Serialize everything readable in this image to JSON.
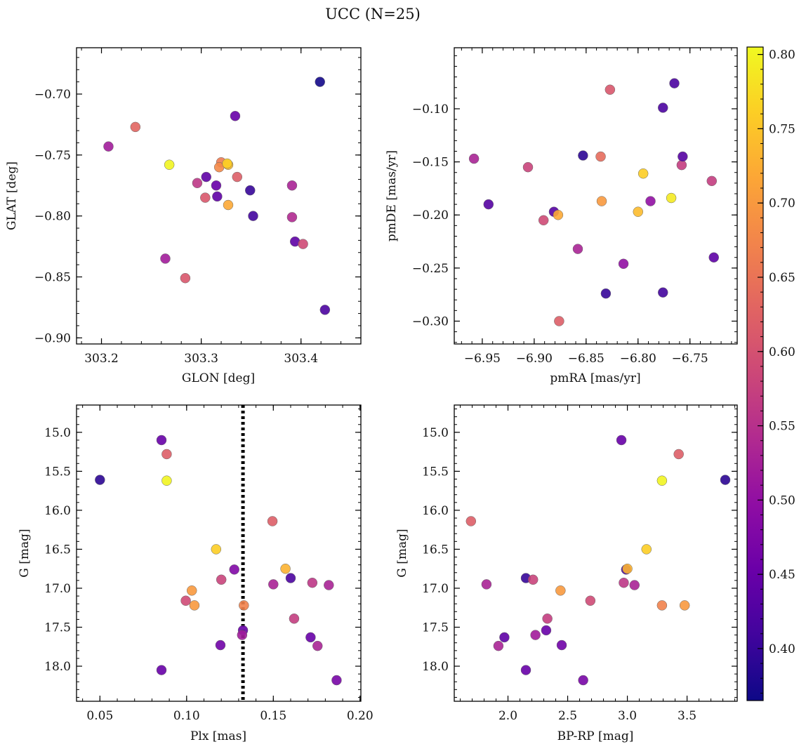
{
  "figure": {
    "title": "UCC (N=25)"
  },
  "colorbar": {
    "min": 0.365,
    "max": 0.805,
    "ticks": [
      0.4,
      0.45,
      0.5,
      0.55,
      0.6,
      0.65,
      0.7,
      0.75,
      0.8
    ],
    "tick_labels": [
      "0.40",
      "0.45",
      "0.50",
      "0.55",
      "0.60",
      "0.65",
      "0.70",
      "0.75",
      "0.80"
    ],
    "colormap": "plasma"
  },
  "chart_data": [
    {
      "type": "scatter",
      "xlabel": "GLON [deg]",
      "ylabel": "GLAT [deg]",
      "xlim": [
        303.175,
        303.46
      ],
      "ylim": [
        -0.905,
        -0.662
      ],
      "y_inverted": false,
      "xticks": [
        303.2,
        303.3,
        303.4
      ],
      "xtick_labels": [
        "303.2",
        "303.3",
        "303.4"
      ],
      "yticks": [
        -0.9,
        -0.85,
        -0.8,
        -0.75,
        -0.7
      ],
      "ytick_labels": [
        "−0.90",
        "−0.85",
        "−0.80",
        "−0.75",
        "−0.70"
      ],
      "points": [
        {
          "x": 303.419,
          "y": -0.69,
          "c": 0.37
        },
        {
          "x": 303.207,
          "y": -0.743,
          "c": 0.52
        },
        {
          "x": 303.234,
          "y": -0.727,
          "c": 0.63
        },
        {
          "x": 303.268,
          "y": -0.758,
          "c": 0.8
        },
        {
          "x": 303.334,
          "y": -0.718,
          "c": 0.45
        },
        {
          "x": 303.32,
          "y": -0.756,
          "c": 0.66
        },
        {
          "x": 303.318,
          "y": -0.76,
          "c": 0.68
        },
        {
          "x": 303.327,
          "y": -0.758,
          "c": 0.74
        },
        {
          "x": 303.326,
          "y": -0.757,
          "c": 0.76
        },
        {
          "x": 303.336,
          "y": -0.768,
          "c": 0.62
        },
        {
          "x": 303.305,
          "y": -0.768,
          "c": 0.44
        },
        {
          "x": 303.296,
          "y": -0.773,
          "c": 0.56
        },
        {
          "x": 303.315,
          "y": -0.775,
          "c": 0.45
        },
        {
          "x": 303.316,
          "y": -0.784,
          "c": 0.44
        },
        {
          "x": 303.304,
          "y": -0.785,
          "c": 0.61
        },
        {
          "x": 303.327,
          "y": -0.791,
          "c": 0.72
        },
        {
          "x": 303.349,
          "y": -0.779,
          "c": 0.4
        },
        {
          "x": 303.352,
          "y": -0.8,
          "c": 0.41
        },
        {
          "x": 303.391,
          "y": -0.775,
          "c": 0.53
        },
        {
          "x": 303.391,
          "y": -0.801,
          "c": 0.54
        },
        {
          "x": 303.394,
          "y": -0.821,
          "c": 0.44
        },
        {
          "x": 303.402,
          "y": -0.823,
          "c": 0.59
        },
        {
          "x": 303.264,
          "y": -0.835,
          "c": 0.52
        },
        {
          "x": 303.284,
          "y": -0.851,
          "c": 0.61
        },
        {
          "x": 303.424,
          "y": -0.877,
          "c": 0.42
        }
      ]
    },
    {
      "type": "scatter",
      "xlabel": "pmRA [mas/yr]",
      "ylabel": "pmDE [mas/yr]",
      "xlim": [
        -6.977,
        -6.7045
      ],
      "ylim": [
        -0.3215,
        -0.0425
      ],
      "y_inverted": false,
      "xticks": [
        -6.95,
        -6.9,
        -6.85,
        -6.8,
        -6.75
      ],
      "xtick_labels": [
        "−6.95",
        "−6.90",
        "−6.85",
        "−6.80",
        "−6.75"
      ],
      "yticks": [
        -0.3,
        -0.25,
        -0.2,
        -0.15,
        -0.1
      ],
      "ytick_labels": [
        "−0.30",
        "−0.25",
        "−0.20",
        "−0.15",
        "−0.10"
      ],
      "points": [
        {
          "x": -6.765,
          "y": -0.076,
          "c": 0.42
        },
        {
          "x": -6.827,
          "y": -0.082,
          "c": 0.61
        },
        {
          "x": -6.776,
          "y": -0.099,
          "c": 0.42
        },
        {
          "x": -6.958,
          "y": -0.147,
          "c": 0.53
        },
        {
          "x": -6.853,
          "y": -0.144,
          "c": 0.39
        },
        {
          "x": -6.836,
          "y": -0.145,
          "c": 0.64
        },
        {
          "x": -6.906,
          "y": -0.155,
          "c": 0.58
        },
        {
          "x": -6.795,
          "y": -0.161,
          "c": 0.76
        },
        {
          "x": -6.758,
          "y": -0.153,
          "c": 0.57
        },
        {
          "x": -6.757,
          "y": -0.145,
          "c": 0.43
        },
        {
          "x": -6.729,
          "y": -0.168,
          "c": 0.57
        },
        {
          "x": -6.944,
          "y": -0.19,
          "c": 0.43
        },
        {
          "x": -6.835,
          "y": -0.187,
          "c": 0.7
        },
        {
          "x": -6.788,
          "y": -0.187,
          "c": 0.5
        },
        {
          "x": -6.768,
          "y": -0.184,
          "c": 0.79
        },
        {
          "x": -6.881,
          "y": -0.197,
          "c": 0.43
        },
        {
          "x": -6.877,
          "y": -0.2,
          "c": 0.72
        },
        {
          "x": -6.8,
          "y": -0.197,
          "c": 0.74
        },
        {
          "x": -6.891,
          "y": -0.205,
          "c": 0.59
        },
        {
          "x": -6.858,
          "y": -0.232,
          "c": 0.53
        },
        {
          "x": -6.814,
          "y": -0.246,
          "c": 0.5
        },
        {
          "x": -6.727,
          "y": -0.24,
          "c": 0.44
        },
        {
          "x": -6.831,
          "y": -0.274,
          "c": 0.4
        },
        {
          "x": -6.776,
          "y": -0.273,
          "c": 0.41
        },
        {
          "x": -6.876,
          "y": -0.3,
          "c": 0.62
        }
      ]
    },
    {
      "type": "scatter",
      "xlabel": "Plx [mas]",
      "ylabel": "G [mag]",
      "xlim": [
        0.0365,
        0.2005
      ],
      "ylim": [
        18.45,
        14.65
      ],
      "y_inverted": true,
      "xticks": [
        0.05,
        0.1,
        0.15,
        0.2
      ],
      "xtick_labels": [
        "0.05",
        "0.10",
        "0.15",
        "0.20"
      ],
      "yticks": [
        15.0,
        15.5,
        16.0,
        16.5,
        17.0,
        17.5,
        18.0
      ],
      "ytick_labels": [
        "15.0",
        "15.5",
        "16.0",
        "16.5",
        "17.0",
        "17.5",
        "18.0"
      ],
      "vline": {
        "x": 0.1325,
        "style": "dotted"
      },
      "points": [
        {
          "x": 0.0855,
          "y": 15.1,
          "c": 0.45
        },
        {
          "x": 0.0885,
          "y": 15.28,
          "c": 0.62
        },
        {
          "x": 0.05,
          "y": 15.61,
          "c": 0.39
        },
        {
          "x": 0.0885,
          "y": 15.62,
          "c": 0.8
        },
        {
          "x": 0.1495,
          "y": 16.14,
          "c": 0.62
        },
        {
          "x": 0.117,
          "y": 16.5,
          "c": 0.76
        },
        {
          "x": 0.1275,
          "y": 16.76,
          "c": 0.48
        },
        {
          "x": 0.157,
          "y": 16.75,
          "c": 0.73
        },
        {
          "x": 0.16,
          "y": 16.87,
          "c": 0.42
        },
        {
          "x": 0.12,
          "y": 16.89,
          "c": 0.58
        },
        {
          "x": 0.15,
          "y": 16.95,
          "c": 0.53
        },
        {
          "x": 0.1725,
          "y": 16.93,
          "c": 0.56
        },
        {
          "x": 0.182,
          "y": 16.96,
          "c": 0.53
        },
        {
          "x": 0.103,
          "y": 17.03,
          "c": 0.7
        },
        {
          "x": 0.0995,
          "y": 17.16,
          "c": 0.59
        },
        {
          "x": 0.1045,
          "y": 17.22,
          "c": 0.7
        },
        {
          "x": 0.133,
          "y": 17.22,
          "c": 0.67
        },
        {
          "x": 0.162,
          "y": 17.39,
          "c": 0.57
        },
        {
          "x": 0.1325,
          "y": 17.54,
          "c": 0.45
        },
        {
          "x": 0.132,
          "y": 17.6,
          "c": 0.52
        },
        {
          "x": 0.1715,
          "y": 17.63,
          "c": 0.45
        },
        {
          "x": 0.1195,
          "y": 17.73,
          "c": 0.46
        },
        {
          "x": 0.1755,
          "y": 17.74,
          "c": 0.53
        },
        {
          "x": 0.0855,
          "y": 18.05,
          "c": 0.45
        },
        {
          "x": 0.1865,
          "y": 18.18,
          "c": 0.47
        }
      ]
    },
    {
      "type": "scatter",
      "xlabel": "BP-RP [mag]",
      "ylabel": "G [mag]",
      "xlim": [
        1.55,
        3.92
      ],
      "ylim": [
        18.45,
        14.65
      ],
      "y_inverted": true,
      "xticks": [
        2.0,
        2.5,
        3.0,
        3.5
      ],
      "xtick_labels": [
        "2.0",
        "2.5",
        "3.0",
        "3.5"
      ],
      "yticks": [
        15.0,
        15.5,
        16.0,
        16.5,
        17.0,
        17.5,
        18.0
      ],
      "ytick_labels": [
        "15.0",
        "15.5",
        "16.0",
        "16.5",
        "17.0",
        "17.5",
        "18.0"
      ],
      "points": [
        {
          "x": 2.95,
          "y": 15.1,
          "c": 0.45
        },
        {
          "x": 3.43,
          "y": 15.28,
          "c": 0.62
        },
        {
          "x": 3.82,
          "y": 15.61,
          "c": 0.39
        },
        {
          "x": 3.29,
          "y": 15.62,
          "c": 0.8
        },
        {
          "x": 1.69,
          "y": 16.14,
          "c": 0.62
        },
        {
          "x": 3.16,
          "y": 16.5,
          "c": 0.76
        },
        {
          "x": 2.99,
          "y": 16.76,
          "c": 0.42
        },
        {
          "x": 3.0,
          "y": 16.75,
          "c": 0.73
        },
        {
          "x": 2.15,
          "y": 16.87,
          "c": 0.4
        },
        {
          "x": 2.21,
          "y": 16.89,
          "c": 0.58
        },
        {
          "x": 1.82,
          "y": 16.95,
          "c": 0.53
        },
        {
          "x": 2.97,
          "y": 16.93,
          "c": 0.56
        },
        {
          "x": 3.06,
          "y": 16.96,
          "c": 0.53
        },
        {
          "x": 2.44,
          "y": 17.03,
          "c": 0.7
        },
        {
          "x": 2.69,
          "y": 17.16,
          "c": 0.59
        },
        {
          "x": 3.29,
          "y": 17.22,
          "c": 0.67
        },
        {
          "x": 3.48,
          "y": 17.22,
          "c": 0.7
        },
        {
          "x": 2.33,
          "y": 17.39,
          "c": 0.57
        },
        {
          "x": 2.32,
          "y": 17.54,
          "c": 0.45
        },
        {
          "x": 2.23,
          "y": 17.6,
          "c": 0.52
        },
        {
          "x": 1.97,
          "y": 17.63,
          "c": 0.44
        },
        {
          "x": 2.45,
          "y": 17.73,
          "c": 0.46
        },
        {
          "x": 1.92,
          "y": 17.74,
          "c": 0.53
        },
        {
          "x": 2.15,
          "y": 18.05,
          "c": 0.45
        },
        {
          "x": 2.63,
          "y": 18.18,
          "c": 0.47
        }
      ]
    }
  ]
}
